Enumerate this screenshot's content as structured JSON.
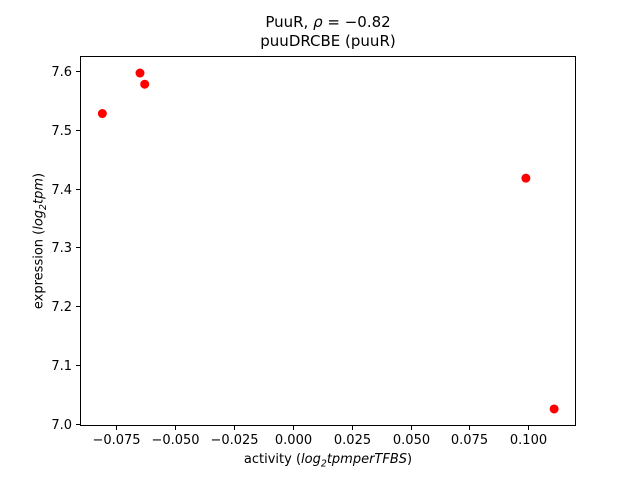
{
  "title": {
    "line1_prefix": "PuuR, ",
    "line1_rho": "ρ",
    "line1_suffix": " = −0.82",
    "line2": "puuDRCBE (puuR)"
  },
  "axis_labels": {
    "x": {
      "prefix": "activity (",
      "log": "log",
      "sub": "2",
      "rest": "tpmperTFBS",
      "suffix": ")"
    },
    "y": {
      "prefix": "expression (",
      "log": "log",
      "sub": "2",
      "rest": "tpm",
      "suffix": ")"
    }
  },
  "chart_data": {
    "type": "scatter",
    "title": "PuuR, ρ = −0.82",
    "subtitle": "puuDRCBE (puuR)",
    "xlabel": "activity (log₂tpmperTFBS)",
    "ylabel": "expression (log₂tpm)",
    "correlation_rho": -0.82,
    "marker_color": "#ff0000",
    "marker_radius_px": 4.5,
    "background_color": "#ffffff",
    "axis_color": "#000000",
    "grid": false,
    "legend": null,
    "xlim": [
      -0.0905,
      0.1203
    ],
    "ylim": [
      6.996,
      7.626
    ],
    "x_ticks": {
      "values": [
        -0.075,
        -0.05,
        -0.025,
        0.0,
        0.025,
        0.05,
        0.075,
        0.1
      ],
      "labels": [
        "−0.075",
        "−0.050",
        "−0.025",
        "0.000",
        "0.025",
        "0.050",
        "0.075",
        "0.100"
      ]
    },
    "y_ticks": {
      "values": [
        7.0,
        7.1,
        7.2,
        7.3,
        7.4,
        7.5,
        7.6
      ],
      "labels": [
        "7.0",
        "7.1",
        "7.2",
        "7.3",
        "7.4",
        "7.5",
        "7.6"
      ]
    },
    "points": [
      {
        "x": -0.081,
        "y": 7.528
      },
      {
        "x": -0.065,
        "y": 7.597
      },
      {
        "x": -0.063,
        "y": 7.578
      },
      {
        "x": 0.099,
        "y": 7.418
      },
      {
        "x": 0.111,
        "y": 7.025
      }
    ]
  }
}
